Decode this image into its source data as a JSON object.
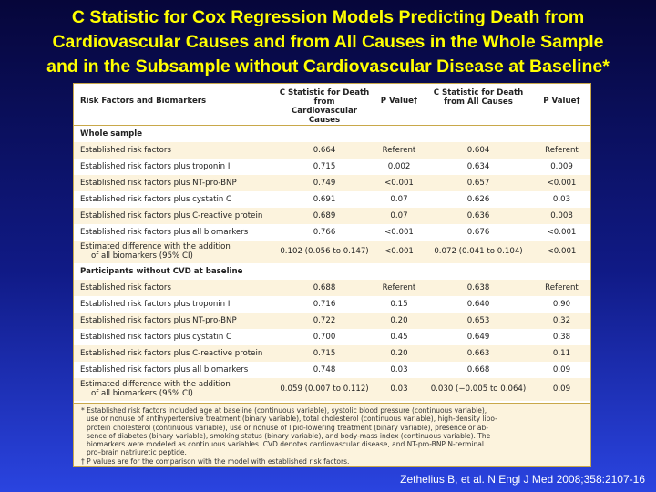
{
  "title_lines": [
    "C Statistic for Cox Regression Models Predicting Death from",
    "Cardiovascular Causes and from All Causes in the Whole Sample",
    "and in the Subsample without Cardiovascular Disease at Baseline*"
  ],
  "table": {
    "headers": {
      "col1": "Risk Factors and Biomarkers",
      "col2_line1": "C Statistic for Death from",
      "col2_line2": "Cardiovascular Causes",
      "col3": "P Value†",
      "col4_line1": "C Statistic for Death",
      "col4_line2": "from All Causes",
      "col5": "P Value†"
    },
    "whole_sample": {
      "section_label": "Whole sample",
      "rows": [
        {
          "label": "Established risk factors",
          "cv_c": "0.664",
          "cv_p": "Referent",
          "all_c": "0.604",
          "all_p": "Referent"
        },
        {
          "label": "Established risk factors plus troponin I",
          "cv_c": "0.715",
          "cv_p": "0.002",
          "all_c": "0.634",
          "all_p": "0.009"
        },
        {
          "label": "Established risk factors plus NT-pro-BNP",
          "cv_c": "0.749",
          "cv_p": "<0.001",
          "all_c": "0.657",
          "all_p": "<0.001"
        },
        {
          "label": "Established risk factors plus cystatin C",
          "cv_c": "0.691",
          "cv_p": "0.07",
          "all_c": "0.626",
          "all_p": "0.03"
        },
        {
          "label": "Established risk factors plus C-reactive protein",
          "cv_c": "0.689",
          "cv_p": "0.07",
          "all_c": "0.636",
          "all_p": "0.008"
        },
        {
          "label": "Established risk factors plus all biomarkers",
          "cv_c": "0.766",
          "cv_p": "<0.001",
          "all_c": "0.676",
          "all_p": "<0.001"
        }
      ],
      "diff": {
        "label_line1": "Estimated difference with the addition",
        "label_line2": "of all biomarkers (95% CI)",
        "cv_c": "0.102 (0.056 to 0.147)",
        "cv_p": "<0.001",
        "all_c": "0.072 (0.041 to 0.104)",
        "all_p": "<0.001"
      }
    },
    "no_cvd": {
      "section_label": "Participants without CVD at baseline",
      "rows": [
        {
          "label": "Established risk factors",
          "cv_c": "0.688",
          "cv_p": "Referent",
          "all_c": "0.638",
          "all_p": "Referent"
        },
        {
          "label": "Established risk factors plus troponin I",
          "cv_c": "0.716",
          "cv_p": "0.15",
          "all_c": "0.640",
          "all_p": "0.90"
        },
        {
          "label": "Established risk factors plus NT-pro-BNP",
          "cv_c": "0.722",
          "cv_p": "0.20",
          "all_c": "0.653",
          "all_p": "0.32"
        },
        {
          "label": "Established risk factors plus cystatin C",
          "cv_c": "0.700",
          "cv_p": "0.45",
          "all_c": "0.649",
          "all_p": "0.38"
        },
        {
          "label": "Established risk factors plus C-reactive protein",
          "cv_c": "0.715",
          "cv_p": "0.20",
          "all_c": "0.663",
          "all_p": "0.11"
        },
        {
          "label": "Established risk factors plus all biomarkers",
          "cv_c": "0.748",
          "cv_p": "0.03",
          "all_c": "0.668",
          "all_p": "0.09"
        }
      ],
      "diff": {
        "label_line1": "Estimated difference with the addition",
        "label_line2": "of all biomarkers (95% CI)",
        "cv_c": "0.059 (0.007 to 0.112)",
        "cv_p": "0.03",
        "all_c": "0.030 (−0.005 to 0.064)",
        "all_p": "0.09"
      }
    }
  },
  "footnotes": {
    "star_line1": "* Established risk factors included age at baseline (continuous variable), systolic blood pressure (continuous variable),",
    "star_line2": "use or nonuse of antihypertensive treatment (binary variable), total cholesterol (continuous variable), high-density lipo-",
    "star_line3": "protein cholesterol (continuous variable), use or nonuse of lipid-lowering treatment (binary variable), presence or ab-",
    "star_line4": "sence of diabetes (binary variable), smoking status (binary variable), and body-mass index (continuous variable). The",
    "star_line5": "biomarkers were modeled as continuous variables. CVD denotes cardiovascular disease, and NT-pro-BNP N-terminal",
    "star_line6": "pro–brain natriuretic peptide.",
    "dagger": "† P values are for the comparison with the model with established risk factors."
  },
  "citation": "Zethelius B, et al. N Engl J Med 2008;358:2107-16"
}
